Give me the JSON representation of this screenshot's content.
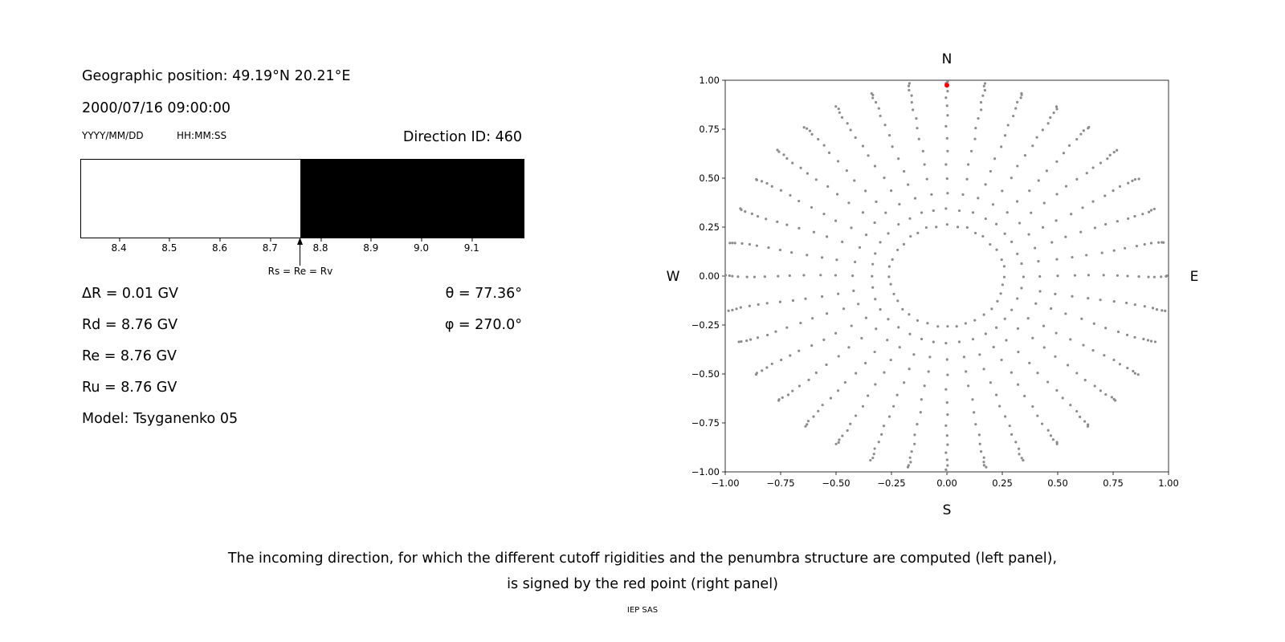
{
  "left_panel": {
    "geo_position": "Geographic position: 49.19°N 20.21°E",
    "datetime": "2000/07/16 09:00:00",
    "date_format": "YYYY/MM/DD",
    "time_format": "HH:MM:SS",
    "direction_id": "Direction ID: 460",
    "values": [
      "ΔR = 0.01 GV",
      "Rd = 8.76 GV",
      "Re = 8.76 GV",
      "Ru = 8.76 GV",
      "Model: Tsyganenko 05"
    ],
    "angles": [
      "θ = 77.36°",
      "φ = 270.0°"
    ]
  },
  "caption": {
    "line1": "The incoming direction, for which the different cutoff rigidities and the penumbra structure are computed (left panel),",
    "line2": "is signed by the red point (right panel)",
    "footer": "IEP SAS"
  },
  "chart_data": [
    {
      "type": "bar",
      "xlim": [
        8.325,
        9.2
      ],
      "x_ticks": [
        8.4,
        8.5,
        8.6,
        8.7,
        8.8,
        8.9,
        9.0,
        9.1
      ],
      "segments": [
        {
          "from": 8.325,
          "to": 8.76,
          "color": "#ffffff"
        },
        {
          "from": 8.76,
          "to": 9.2,
          "color": "#000000"
        }
      ],
      "annotation": {
        "x": 8.76,
        "label": "Rs = Re = Rv"
      }
    },
    {
      "type": "scatter",
      "xlim": [
        -1.0,
        1.0
      ],
      "ylim": [
        -1.0,
        1.0
      ],
      "x_ticks": [
        -1.0,
        -0.75,
        -0.5,
        -0.25,
        0.0,
        0.25,
        0.5,
        0.75,
        1.0
      ],
      "y_ticks": [
        -1.0,
        -0.75,
        -0.5,
        -0.25,
        0.0,
        0.25,
        0.5,
        0.75,
        1.0
      ],
      "compass": {
        "top": "N",
        "bottom": "S",
        "left": "W",
        "right": "E"
      },
      "dot_color": "#8c8c8c",
      "spokes": {
        "azimuth_start_deg": 0,
        "azimuth_step_deg": 10,
        "count": 36,
        "radii": [
          0.259,
          0.342,
          0.423,
          0.5,
          0.574,
          0.643,
          0.707,
          0.766,
          0.819,
          0.866,
          0.906,
          0.94,
          0.966,
          0.985,
          0.996
        ]
      },
      "highlight_point": {
        "x": 0.0,
        "y": 0.975,
        "color": "#ff0000"
      }
    }
  ]
}
